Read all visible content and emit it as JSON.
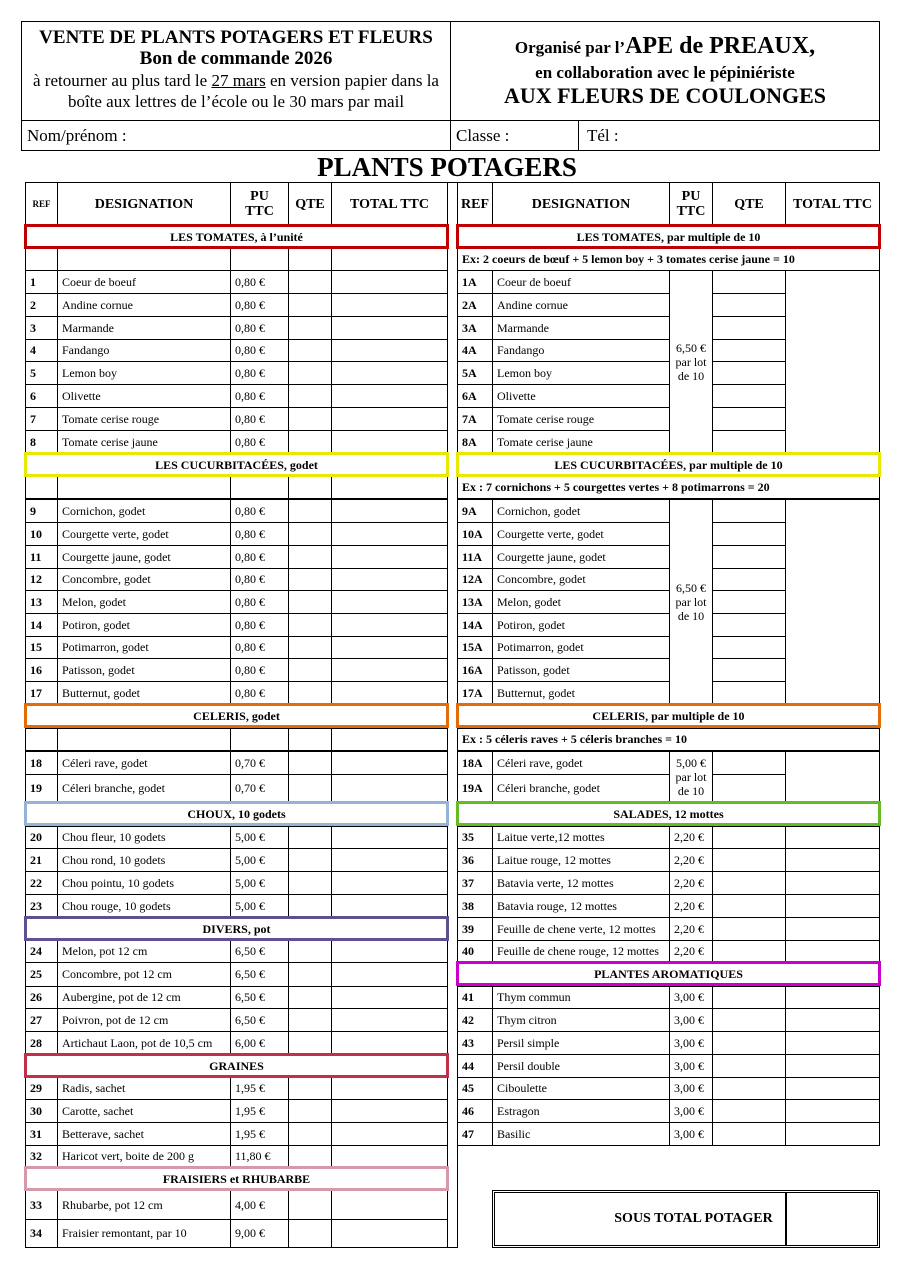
{
  "header": {
    "title": "VENTE DE PLANTS POTAGERS ET FLEURS",
    "subtitle": "Bon de commande 2026",
    "instructions_pre": "à retourner au plus tard le ",
    "instructions_date": "27 mars",
    "instructions_post": " en version papier dans la boîte aux lettres de l’école ou le 30 mars par mail",
    "organized_pre": "Organisé par l’",
    "organizer": "APE de PREAUX,",
    "collab": "en collaboration avec le pépiniériste",
    "nursery": "AUX FLEURS DE COULONGES",
    "name_label": "Nom/prénom  :",
    "class_label": "Classe :",
    "phone_label": "Tél :"
  },
  "page_title": "PLANTS POTAGERS",
  "columns": {
    "ref": "REF",
    "designation": "DESIGNATION",
    "pu": "PU TTC",
    "qte": "QTE",
    "total": "TOTAL TTC"
  },
  "left_sections": [
    {
      "title": "LES  TOMATES, à l’unité",
      "color": "#c00000",
      "items": [
        {
          "ref": "1",
          "name": "Coeur de boeuf",
          "price": "0,80 €"
        },
        {
          "ref": "2",
          "name": "Andine cornue",
          "price": "0,80 €"
        },
        {
          "ref": "3",
          "name": "Marmande",
          "price": "0,80 €"
        },
        {
          "ref": "4",
          "name": "Fandango",
          "price": "0,80 €"
        },
        {
          "ref": "5",
          "name": "Lemon boy",
          "price": "0,80 €"
        },
        {
          "ref": "6",
          "name": "Olivette",
          "price": "0,80 €"
        },
        {
          "ref": "7",
          "name": "Tomate cerise rouge",
          "price": "0,80 €"
        },
        {
          "ref": "8",
          "name": "Tomate cerise jaune",
          "price": "0,80 €"
        }
      ]
    },
    {
      "title": "LES CUCURBITACÉES, godet",
      "color": "#e8e800",
      "items": [
        {
          "ref": "9",
          "name": "Cornichon, godet",
          "price": "0,80 €"
        },
        {
          "ref": "10",
          "name": "Courgette verte, godet",
          "price": "0,80 €"
        },
        {
          "ref": "11",
          "name": "Courgette jaune, godet",
          "price": "0,80 €"
        },
        {
          "ref": "12",
          "name": "Concombre, godet",
          "price": "0,80 €"
        },
        {
          "ref": "13",
          "name": "Melon, godet",
          "price": "0,80 €"
        },
        {
          "ref": "14",
          "name": "Potiron, godet",
          "price": "0,80 €"
        },
        {
          "ref": "15",
          "name": "Potimarron, godet",
          "price": "0,80 €"
        },
        {
          "ref": "16",
          "name": "Patisson, godet",
          "price": "0,80 €"
        },
        {
          "ref": "17",
          "name": "Butternut, godet",
          "price": "0,80 €"
        }
      ]
    },
    {
      "title": "CELERIS, godet",
      "color": "#e36c09",
      "items": [
        {
          "ref": "18",
          "name": "Céleri rave, godet",
          "price": "0,70 €"
        },
        {
          "ref": "19",
          "name": "Céleri branche, godet",
          "price": "0,70 €"
        }
      ]
    },
    {
      "title": "CHOUX, 10 godets",
      "color": "#95b3d7",
      "items": [
        {
          "ref": "20",
          "name": "Chou fleur, 10 godets",
          "price": "5,00 €"
        },
        {
          "ref": "21",
          "name": "Chou rond, 10 godets",
          "price": "5,00 €"
        },
        {
          "ref": "22",
          "name": "Chou pointu, 10 godets",
          "price": "5,00 €"
        },
        {
          "ref": "23",
          "name": "Chou rouge, 10 godets",
          "price": "5,00 €"
        }
      ]
    },
    {
      "title": "DIVERS, pot",
      "color": "#60508f",
      "items": [
        {
          "ref": "24",
          "name": "Melon, pot 12 cm",
          "price": "6,50 €"
        },
        {
          "ref": "25",
          "name": "Concombre, pot 12 cm",
          "price": "6,50 €"
        },
        {
          "ref": "26",
          "name": "Aubergine, pot de 12 cm",
          "price": "6,50 €"
        },
        {
          "ref": "27",
          "name": "Poivron, pot de 12 cm",
          "price": "6,50 €"
        },
        {
          "ref": "28",
          "name": "Artichaut  Laon, pot  de 10,5 cm",
          "price": "6,00 €"
        }
      ]
    },
    {
      "title": "GRAINES",
      "color": "#c0304a",
      "items": [
        {
          "ref": "29",
          "name": "Radis, sachet",
          "price": "1,95 €"
        },
        {
          "ref": "30",
          "name": "Carotte, sachet",
          "price": "1,95 €"
        },
        {
          "ref": "31",
          "name": "Betterave, sachet",
          "price": "1,95 €"
        },
        {
          "ref": "32",
          "name": "Haricot vert, boite de 200 g",
          "price": "11,80 €"
        }
      ]
    },
    {
      "title": "FRAISIERS et RHUBARBE",
      "color": "#d699a8",
      "items": [
        {
          "ref": "33",
          "name": "Rhubarbe, pot 12 cm",
          "price": "4,00 €"
        },
        {
          "ref": "34",
          "name": "Fraisier remontant, par 10",
          "price": "9,00 €"
        }
      ]
    }
  ],
  "right_sections": [
    {
      "title": "LES  TOMATES, par multiple de 10",
      "color": "#c00000",
      "example": "Ex: 2 coeurs de bœuf + 5 lemon boy + 3 tomates cerise jaune = 10",
      "lot_price": "6,50 € par lot de 10",
      "items": [
        {
          "ref": "1A",
          "name": "Coeur de boeuf"
        },
        {
          "ref": "2A",
          "name": "Andine cornue"
        },
        {
          "ref": "3A",
          "name": "Marmande"
        },
        {
          "ref": "4A",
          "name": "Fandango"
        },
        {
          "ref": "5A",
          "name": "Lemon boy"
        },
        {
          "ref": "6A",
          "name": "Olivette"
        },
        {
          "ref": "7A",
          "name": "Tomate cerise rouge"
        },
        {
          "ref": "8A",
          "name": "Tomate cerise jaune"
        }
      ]
    },
    {
      "title": "LES CUCURBITACÉES, par multiple de 10",
      "color": "#e8e800",
      "example": "Ex : 7 cornichons + 5 courgettes vertes + 8 potimarrons = 20",
      "lot_price": "6,50 € par lot de 10",
      "items": [
        {
          "ref": "9A",
          "name": "Cornichon, godet"
        },
        {
          "ref": "10A",
          "name": "Courgette verte, godet"
        },
        {
          "ref": "11A",
          "name": "Courgette jaune, godet"
        },
        {
          "ref": "12A",
          "name": "Concombre, godet"
        },
        {
          "ref": "13A",
          "name": "Melon, godet"
        },
        {
          "ref": "14A",
          "name": "Potiron, godet"
        },
        {
          "ref": "15A",
          "name": "Potimarron, godet"
        },
        {
          "ref": "16A",
          "name": "Patisson, godet"
        },
        {
          "ref": "17A",
          "name": "Butternut, godet"
        }
      ]
    },
    {
      "title": "CELERIS, par multiple de 10",
      "color": "#e36c09",
      "example": "Ex : 5 céleris raves + 5 céleris branches = 10",
      "lot_price": "5,00 € par lot de 10",
      "items": [
        {
          "ref": "18A",
          "name": "Céleri rave, godet"
        },
        {
          "ref": "19A",
          "name": "Céleri branche, godet"
        }
      ]
    },
    {
      "title": "SALADES, 12 mottes",
      "color": "#66bb22",
      "items": [
        {
          "ref": "35",
          "name": "Laitue verte,12 mottes",
          "price": "2,20 €"
        },
        {
          "ref": "36",
          "name": "Laitue rouge, 12 mottes",
          "price": "2,20 €"
        },
        {
          "ref": "37",
          "name": "Batavia verte, 12 mottes",
          "price": "2,20 €"
        },
        {
          "ref": "38",
          "name": "Batavia rouge, 12 mottes",
          "price": "2,20 €"
        },
        {
          "ref": "39",
          "name": "Feuille de chene verte, 12 mottes",
          "price": "2,20 €"
        },
        {
          "ref": "40",
          "name": "Feuille de chene rouge, 12 mottes",
          "price": "2,20 €"
        }
      ]
    },
    {
      "title": "PLANTES AROMATIQUES",
      "color": "#cc00cc",
      "items": [
        {
          "ref": "41",
          "name": "Thym commun",
          "price": "3,00 €"
        },
        {
          "ref": "42",
          "name": "Thym citron",
          "price": "3,00 €"
        },
        {
          "ref": "43",
          "name": "Persil simple",
          "price": "3,00 €"
        },
        {
          "ref": "44",
          "name": "Persil double",
          "price": "3,00 €"
        },
        {
          "ref": "45",
          "name": "Ciboulette",
          "price": "3,00 €"
        },
        {
          "ref": "46",
          "name": "Estragon",
          "price": "3,00 €"
        },
        {
          "ref": "47",
          "name": "Basilic",
          "price": "3,00 €"
        }
      ]
    }
  ],
  "subtotal_label": "SOUS TOTAL POTAGER"
}
